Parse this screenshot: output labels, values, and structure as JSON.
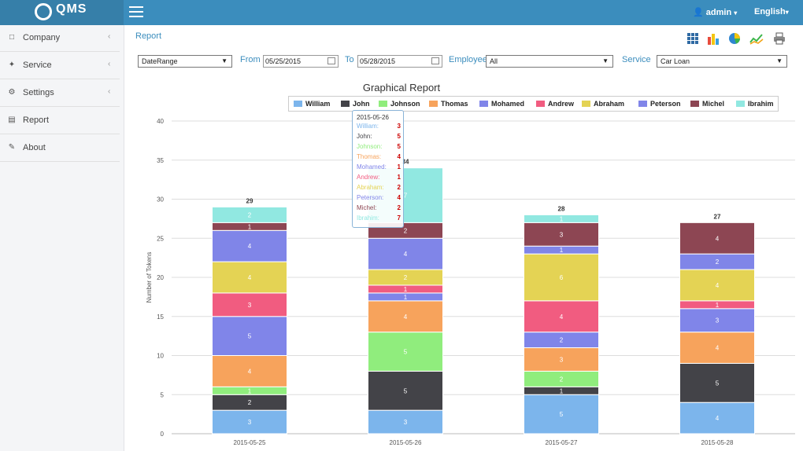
{
  "app": {
    "logo_text": "QMS"
  },
  "header": {
    "user": "admin",
    "language": "English"
  },
  "sidebar": {
    "items": [
      {
        "label": "Company",
        "icon": "building-icon",
        "has_submenu": true
      },
      {
        "label": "Service",
        "icon": "wrench-icon",
        "has_submenu": true
      },
      {
        "label": "Settings",
        "icon": "gear-icon",
        "has_submenu": true
      },
      {
        "label": "Report",
        "icon": "file-icon",
        "has_submenu": false
      },
      {
        "label": "About",
        "icon": "edit-icon",
        "has_submenu": false
      }
    ]
  },
  "breadcrumb": "Report",
  "toolbar": {
    "icons": [
      "table-view-icon",
      "bar-chart-icon",
      "pie-chart-icon",
      "line-chart-icon",
      "print-icon"
    ]
  },
  "filters": {
    "range": "DateRange",
    "from_label": "From",
    "from_value": "05/25/2015",
    "to_label": "To",
    "to_value": "05/28/2015",
    "employee_label": "Employee",
    "employee_value": "All",
    "service_label": "Service",
    "service_value": "Car Loan"
  },
  "chart_data": {
    "type": "bar",
    "stacked": true,
    "title": "Graphical Report",
    "ylabel": "Number of Tokens",
    "xlabel": "",
    "ylim": [
      0,
      40
    ],
    "yticks": [
      0,
      5,
      10,
      15,
      20,
      25,
      30,
      35,
      40
    ],
    "grid": true,
    "legend_position": "top",
    "categories": [
      "2015-05-25",
      "2015-05-26",
      "2015-05-27",
      "2015-05-28"
    ],
    "totals": [
      29,
      34,
      28,
      27
    ],
    "series": [
      {
        "name": "William",
        "color": "#7cb5ec",
        "values": [
          3,
          3,
          5,
          4
        ]
      },
      {
        "name": "John",
        "color": "#434348",
        "values": [
          2,
          5,
          1,
          5
        ]
      },
      {
        "name": "Johnson",
        "color": "#90ed7d",
        "values": [
          1,
          5,
          2,
          0
        ]
      },
      {
        "name": "Thomas",
        "color": "#f7a35c",
        "values": [
          4,
          4,
          3,
          4
        ]
      },
      {
        "name": "Mohamed",
        "color": "#8085e9",
        "values": [
          5,
          1,
          2,
          3
        ]
      },
      {
        "name": "Andrew",
        "color": "#f15c80",
        "values": [
          3,
          1,
          4,
          1
        ]
      },
      {
        "name": "Abraham",
        "color": "#e4d354",
        "values": [
          4,
          2,
          6,
          4
        ]
      },
      {
        "name": "Peterson",
        "color": "#8085e8",
        "values": [
          4,
          4,
          1,
          2
        ]
      },
      {
        "name": "Michel",
        "color": "#8d4653",
        "values": [
          1,
          2,
          3,
          4
        ]
      },
      {
        "name": "Ibrahim",
        "color": "#91e8e1",
        "values": [
          2,
          7,
          1,
          0
        ]
      }
    ]
  },
  "tooltip": {
    "title": "2015-05-26",
    "rows": [
      {
        "name": "William:",
        "value": "3",
        "color": "#7cb5ec"
      },
      {
        "name": "John:",
        "value": "5",
        "color": "#434348"
      },
      {
        "name": "Johnson:",
        "value": "5",
        "color": "#90ed7d"
      },
      {
        "name": "Thomas:",
        "value": "4",
        "color": "#f7a35c"
      },
      {
        "name": "Mohamed:",
        "value": "1",
        "color": "#8085e9"
      },
      {
        "name": "Andrew:",
        "value": "1",
        "color": "#f15c80"
      },
      {
        "name": "Abraham:",
        "value": "2",
        "color": "#e4d354"
      },
      {
        "name": "Peterson:",
        "value": "4",
        "color": "#8085e8"
      },
      {
        "name": "Michel:",
        "value": "2",
        "color": "#8d4653"
      },
      {
        "name": "Ibrahim:",
        "value": "7",
        "color": "#91e8e1"
      }
    ]
  }
}
